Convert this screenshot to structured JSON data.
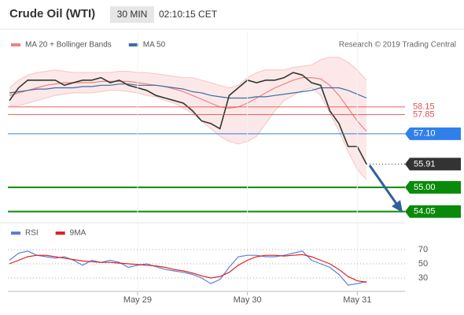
{
  "header": {
    "instrument": "Crude Oil (WTI)",
    "interval": "30 MIN",
    "time": "02:10:15 CET",
    "credit": "Research © 2019 Trading Central"
  },
  "chart_data": [
    {
      "type": "line",
      "ylim": [
        53.7,
        60.2
      ],
      "xlim": [
        -1,
        43
      ],
      "series": [
        {
          "name": "MA 20 + Bollinger Bands",
          "color": "#f08080",
          "values": [
            58.6,
            58.7,
            58.8,
            58.9,
            59.0,
            59.05,
            59.1,
            59.1,
            59.1,
            59.1,
            59.15,
            59.15,
            59.15,
            59.15,
            59.1,
            59.05,
            59.0,
            58.95,
            58.85,
            58.75,
            58.6,
            58.45,
            58.3,
            58.15,
            58.1,
            58.15,
            58.3,
            58.5,
            58.7,
            58.9,
            59.05,
            59.2,
            59.3,
            59.3,
            59.25,
            59.0,
            58.6,
            58.1,
            57.6,
            57.2
          ],
          "upper": [
            58.9,
            59.2,
            59.4,
            59.5,
            59.55,
            59.6,
            59.55,
            59.5,
            59.5,
            59.5,
            59.5,
            59.5,
            59.55,
            59.55,
            59.5,
            59.5,
            59.45,
            59.4,
            59.35,
            59.3,
            59.3,
            59.2,
            59.1,
            59.0,
            58.9,
            59.0,
            59.3,
            59.5,
            59.6,
            59.6,
            59.6,
            59.7,
            59.75,
            59.8,
            60.0,
            60.1,
            60.1,
            59.9,
            59.6,
            59.2
          ],
          "lower": [
            58.2,
            58.2,
            58.3,
            58.4,
            58.5,
            58.6,
            58.65,
            58.7,
            58.7,
            58.7,
            58.75,
            58.8,
            58.8,
            58.75,
            58.7,
            58.6,
            58.55,
            58.4,
            58.3,
            58.1,
            57.9,
            57.6,
            57.3,
            57.0,
            56.8,
            56.7,
            56.8,
            57.0,
            57.5,
            58.0,
            58.4,
            58.6,
            58.8,
            58.9,
            58.6,
            57.9,
            57.2,
            56.4,
            55.7,
            55.3
          ]
        },
        {
          "name": "MA 50",
          "color": "#3a6ea5",
          "values": [
            58.7,
            58.75,
            58.8,
            58.85,
            58.85,
            58.9,
            58.9,
            58.9,
            58.95,
            58.95,
            59.0,
            59.0,
            59.05,
            59.05,
            59.0,
            59.0,
            59.0,
            58.95,
            58.9,
            58.85,
            58.75,
            58.7,
            58.6,
            58.55,
            58.5,
            58.5,
            58.5,
            58.55,
            58.55,
            58.6,
            58.65,
            58.7,
            58.75,
            58.8,
            58.9,
            58.9,
            58.9,
            58.8,
            58.65,
            58.5
          ]
        },
        {
          "color": "#2f3a2f",
          "values": [
            58.4,
            58.9,
            59.2,
            59.2,
            59.2,
            59.2,
            59.0,
            59.1,
            59.2,
            59.2,
            59.3,
            59.1,
            59.2,
            59.0,
            58.9,
            58.8,
            58.6,
            58.5,
            58.4,
            58.3,
            58.0,
            57.6,
            57.5,
            57.3,
            58.6,
            58.9,
            59.2,
            59.1,
            59.2,
            59.2,
            59.3,
            59.5,
            59.4,
            59.1,
            59.0,
            58.0,
            57.5,
            56.6,
            56.6,
            55.91
          ]
        }
      ],
      "levels": [
        {
          "value": 58.15,
          "color": "#e05050",
          "style": "line"
        },
        {
          "value": 57.85,
          "color": "#e05050",
          "style": "line"
        },
        {
          "value": 57.1,
          "label": "57.10",
          "color": "#2f80ed",
          "style": "box"
        },
        {
          "value": 55.91,
          "color": "#333333",
          "style": "dotted"
        },
        {
          "value": 55,
          "label": "55.00",
          "color": "#0a8a0a",
          "style": "box"
        },
        {
          "value": 54.05,
          "color": "#0a8a0a",
          "style": "box"
        }
      ]
    },
    {
      "type": "line",
      "ylim": [
        10,
        90
      ],
      "yticks": [
        30,
        50,
        70
      ],
      "grid": "dotted",
      "xlim": [
        -1,
        43
      ],
      "xticks": [
        {
          "value": 14,
          "label": "May 29"
        },
        {
          "value": 26,
          "label": "May 30"
        },
        {
          "value": 38,
          "label": "May 31"
        }
      ],
      "series": [
        {
          "name": "RSI",
          "color": "#5b7fd6",
          "values": [
            55,
            65,
            68,
            62,
            60,
            58,
            60,
            55,
            48,
            55,
            52,
            55,
            52,
            45,
            48,
            50,
            46,
            42,
            40,
            38,
            35,
            30,
            22,
            28,
            45,
            60,
            62,
            62,
            60,
            60,
            62,
            65,
            68,
            55,
            50,
            45,
            35,
            20,
            22,
            25
          ]
        },
        {
          "name": "9MA",
          "color": "#e02020",
          "values": [
            50,
            55,
            60,
            62,
            62,
            60,
            58,
            56,
            54,
            53,
            52,
            52,
            51,
            50,
            49,
            48,
            47,
            45,
            42,
            40,
            37,
            33,
            30,
            32,
            38,
            48,
            55,
            60,
            62,
            62,
            61,
            62,
            63,
            60,
            55,
            50,
            42,
            32,
            26,
            24
          ]
        }
      ]
    }
  ]
}
